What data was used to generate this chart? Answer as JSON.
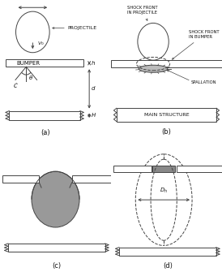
{
  "bg_color": "#ffffff",
  "line_color": "#444444",
  "text_color": "#111111",
  "label_a": "(a)",
  "label_b": "(b)",
  "label_c": "(c)",
  "label_d": "(d)"
}
